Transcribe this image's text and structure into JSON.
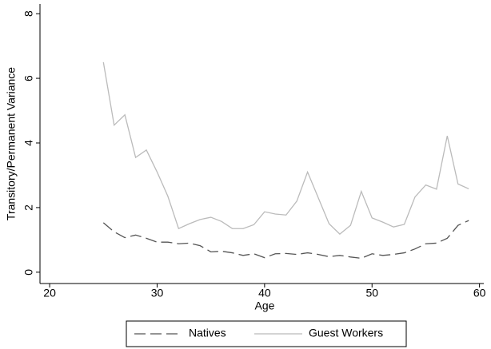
{
  "chart_data": {
    "type": "line",
    "x_label": "Age",
    "y_label": "Transitory/Permanent Variance",
    "x": [
      25,
      26,
      27,
      28,
      29,
      30,
      31,
      32,
      33,
      34,
      35,
      36,
      37,
      38,
      39,
      40,
      41,
      42,
      43,
      44,
      45,
      46,
      47,
      48,
      49,
      50,
      51,
      52,
      53,
      54,
      55,
      56,
      57,
      58,
      59
    ],
    "series": [
      {
        "name": "Natives",
        "color": "#555555",
        "dashed": true,
        "values": [
          1.53,
          1.25,
          1.07,
          1.15,
          1.05,
          0.93,
          0.93,
          0.88,
          0.9,
          0.82,
          0.63,
          0.65,
          0.6,
          0.52,
          0.57,
          0.45,
          0.57,
          0.58,
          0.55,
          0.6,
          0.55,
          0.48,
          0.52,
          0.47,
          0.43,
          0.57,
          0.52,
          0.55,
          0.6,
          0.72,
          0.88,
          0.9,
          1.05,
          1.45,
          1.6
        ]
      },
      {
        "name": "Guest Workers",
        "color": "#bbbbbb",
        "dashed": false,
        "values": [
          6.5,
          4.55,
          4.87,
          3.55,
          3.78,
          3.1,
          2.35,
          1.35,
          1.5,
          1.63,
          1.7,
          1.57,
          1.35,
          1.35,
          1.47,
          1.87,
          1.8,
          1.77,
          2.2,
          3.1,
          2.3,
          1.5,
          1.18,
          1.45,
          2.5,
          1.68,
          1.55,
          1.4,
          1.48,
          2.33,
          2.7,
          2.57,
          4.22,
          2.73,
          2.58
        ]
      }
    ],
    "xlim": [
      19.1,
      60.4
    ],
    "xticks": [
      20,
      30,
      40,
      50,
      60
    ],
    "ylim": [
      -0.35,
      8.3
    ],
    "yticks": [
      0,
      2,
      4,
      6,
      8
    ],
    "grid": false,
    "legend": "bottom"
  }
}
